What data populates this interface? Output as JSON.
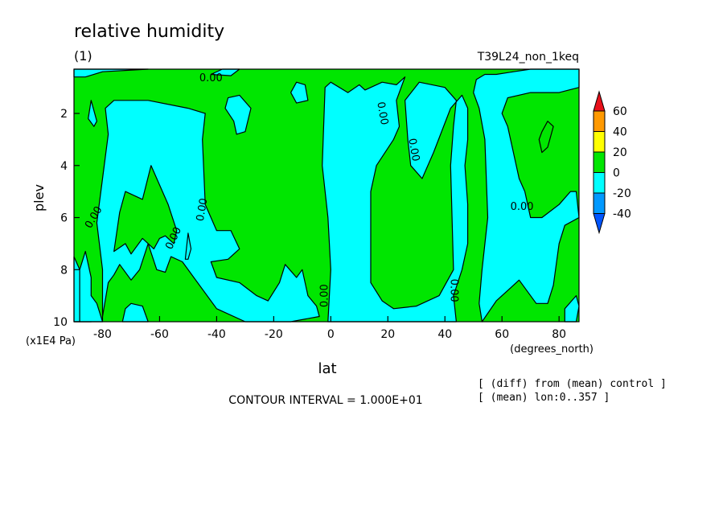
{
  "chart_data": {
    "type": "contour",
    "title": "relative humidity",
    "subtitle_left": "(1)",
    "subtitle_right": "T39L24_non_1keq",
    "xlabel": "lat",
    "xunits": "(degrees_north)",
    "ylabel": "plev",
    "yunits": "(x1E4 Pa)",
    "xlim": [
      -90,
      87
    ],
    "ylim": [
      10,
      0.3
    ],
    "x_ticks": [
      -80,
      -60,
      -40,
      -20,
      0,
      20,
      40,
      60,
      80
    ],
    "x_tick_labels": [
      "-80",
      "-60",
      "-40",
      "-20",
      "0",
      "20",
      "40",
      "60",
      "80"
    ],
    "y_ticks": [
      2,
      4,
      6,
      8,
      10
    ],
    "y_tick_labels": [
      "2",
      "4",
      "6",
      "8",
      "10"
    ],
    "contour_label": "0.00",
    "colorbar": {
      "levels": [
        -40,
        -20,
        0,
        20,
        40,
        60
      ],
      "labels": [
        "60",
        "40",
        "20",
        "0",
        "-20",
        "-40"
      ],
      "colors": [
        "#e8101a",
        "#ff9900",
        "#ffff00",
        "#00e600",
        "#00ffff",
        "#0099ff",
        "#0055ff"
      ]
    },
    "footer": {
      "contour_interval": "CONTOUR INTERVAL = 1.000E+01",
      "note1": "[ (diff) from (mean) control ]",
      "note2": "[ (mean) lon:0..357 ]"
    },
    "regions": [
      {
        "value": "negative",
        "color": "#00ffff",
        "points": [
          [
            -90,
            10
          ],
          [
            -90,
            7.5
          ],
          [
            -88,
            8
          ],
          [
            -84,
            10
          ]
        ]
      },
      {
        "value": "negative",
        "color": "#00ffff",
        "points": [
          [
            -88,
            10
          ],
          [
            -88,
            8
          ],
          [
            -86,
            7.3
          ],
          [
            -84,
            8.3
          ],
          [
            -84,
            9
          ],
          [
            -82,
            9.3
          ],
          [
            -80,
            10
          ]
        ]
      },
      {
        "value": "negative",
        "color": "#00ffff",
        "points": [
          [
            -73,
            10
          ],
          [
            -72,
            9.5
          ],
          [
            -70,
            9.3
          ],
          [
            -66,
            9.4
          ],
          [
            -64,
            10
          ]
        ]
      },
      {
        "value": "negative",
        "color": "#00ffff",
        "points": [
          [
            -80,
            9.8
          ],
          [
            -80,
            8
          ],
          [
            -82,
            6.2
          ],
          [
            -80,
            4.5
          ],
          [
            -78,
            2.8
          ],
          [
            -79,
            1.8
          ],
          [
            -76,
            1.5
          ],
          [
            -64,
            1.5
          ],
          [
            -50,
            1.8
          ],
          [
            -44,
            2
          ],
          [
            -45,
            3
          ],
          [
            -44,
            5.5
          ],
          [
            -40,
            6.5
          ],
          [
            -35,
            6.5
          ],
          [
            -32,
            7.2
          ],
          [
            -36,
            7.6
          ],
          [
            -42,
            7.7
          ],
          [
            -40,
            8.3
          ],
          [
            -32,
            8.5
          ],
          [
            -26,
            9
          ],
          [
            -22,
            9.2
          ],
          [
            -18,
            8.5
          ],
          [
            -16,
            7.8
          ],
          [
            -12,
            8.3
          ],
          [
            -10,
            8
          ],
          [
            -8,
            9
          ],
          [
            -5,
            9.4
          ],
          [
            -4,
            9.8
          ],
          [
            -14,
            10
          ],
          [
            -30,
            10
          ],
          [
            -40,
            9.5
          ],
          [
            -48,
            8.3
          ],
          [
            -52,
            7.7
          ],
          [
            -56,
            7.5
          ],
          [
            -58,
            8.1
          ],
          [
            -61,
            8
          ],
          [
            -64,
            7
          ],
          [
            -67,
            8
          ],
          [
            -70,
            8.4
          ],
          [
            -74,
            7.8
          ],
          [
            -76,
            8.2
          ],
          [
            -78,
            8.5
          ]
        ]
      },
      {
        "value": "positive",
        "color": "#00e600",
        "points": [
          [
            -76,
            7.3
          ],
          [
            -74,
            5.8
          ],
          [
            -72,
            5
          ],
          [
            -66,
            5.3
          ],
          [
            -63,
            4
          ],
          [
            -57,
            5.5
          ],
          [
            -54,
            6.5
          ],
          [
            -55,
            7
          ],
          [
            -58,
            6.7
          ],
          [
            -60,
            6.8
          ],
          [
            -62,
            7.2
          ],
          [
            -66,
            6.8
          ],
          [
            -70,
            7.4
          ],
          [
            -72,
            7
          ]
        ]
      },
      {
        "value": "negative",
        "color": "#00ffff",
        "points": [
          [
            -51,
            7.6
          ],
          [
            -50,
            6.6
          ],
          [
            -49,
            7.2
          ],
          [
            -50,
            7.6
          ]
        ]
      },
      {
        "value": "negative",
        "color": "#00ffff",
        "points": [
          [
            -34,
            2.3
          ],
          [
            -37,
            1.8
          ],
          [
            -36,
            1.4
          ],
          [
            -32,
            1.3
          ],
          [
            -28,
            1.8
          ],
          [
            -30,
            2.7
          ],
          [
            -33,
            2.8
          ]
        ]
      },
      {
        "value": "negative",
        "color": "#00ffff",
        "points": [
          [
            -14,
            1.2
          ],
          [
            -12,
            0.8
          ],
          [
            -9,
            0.9
          ],
          [
            -8,
            1.5
          ],
          [
            -12,
            1.6
          ]
        ]
      },
      {
        "value": "negative",
        "color": "#00ffff",
        "points": [
          [
            -85,
            2.2
          ],
          [
            -84,
            1.5
          ],
          [
            -82,
            2.3
          ],
          [
            -83,
            2.5
          ]
        ]
      },
      {
        "value": "negative",
        "color": "#00ffff",
        "points": [
          [
            -90,
            0.3
          ],
          [
            -90,
            0.6
          ],
          [
            -86,
            0.6
          ],
          [
            -80,
            0.4
          ],
          [
            -64,
            0.3
          ]
        ]
      },
      {
        "value": "negative",
        "color": "#00ffff",
        "points": [
          [
            -42,
            0.5
          ],
          [
            -38,
            0.3
          ],
          [
            -32,
            0.3
          ],
          [
            -35,
            0.55
          ]
        ]
      },
      {
        "value": "negative",
        "color": "#00ffff",
        "points": [
          [
            -1,
            10
          ],
          [
            0,
            8
          ],
          [
            -1,
            6
          ],
          [
            -3,
            4
          ],
          [
            -2,
            1
          ],
          [
            0,
            0.8
          ],
          [
            6,
            1.2
          ],
          [
            10,
            0.9
          ],
          [
            12,
            1.1
          ],
          [
            18,
            0.8
          ],
          [
            23,
            0.9
          ],
          [
            26,
            0.6
          ],
          [
            23,
            1.5
          ],
          [
            24,
            2.5
          ],
          [
            22,
            3
          ],
          [
            16,
            4
          ],
          [
            14,
            5
          ],
          [
            14,
            6
          ],
          [
            14,
            7.8
          ],
          [
            14,
            8.5
          ],
          [
            18,
            9.2
          ],
          [
            22,
            9.5
          ],
          [
            30,
            9.4
          ],
          [
            38,
            9
          ],
          [
            43,
            8
          ],
          [
            42,
            4
          ],
          [
            43,
            2.5
          ],
          [
            44,
            1.5
          ],
          [
            40,
            1
          ],
          [
            31,
            0.8
          ],
          [
            26,
            1.5
          ],
          [
            27,
            3
          ],
          [
            28,
            4
          ],
          [
            32,
            4.5
          ],
          [
            36,
            3.5
          ],
          [
            42,
            1.8
          ],
          [
            46,
            1.3
          ],
          [
            48,
            1.8
          ],
          [
            48,
            3
          ],
          [
            47,
            4
          ],
          [
            48,
            5.5
          ],
          [
            48,
            7
          ],
          [
            46,
            8
          ],
          [
            43,
            9
          ],
          [
            44,
            10
          ]
        ]
      },
      {
        "value": "negative",
        "color": "#00ffff",
        "points": [
          [
            53,
            10
          ],
          [
            52,
            9.3
          ],
          [
            53,
            8
          ],
          [
            55,
            6
          ],
          [
            54,
            3
          ],
          [
            52,
            1.8
          ],
          [
            50,
            1.2
          ],
          [
            51,
            0.7
          ],
          [
            54,
            0.5
          ],
          [
            58,
            0.5
          ],
          [
            64,
            0.4
          ],
          [
            70,
            0.3
          ],
          [
            87,
            0.3
          ],
          [
            87,
            1
          ],
          [
            80,
            1.2
          ],
          [
            70,
            1.2
          ],
          [
            62,
            1.4
          ],
          [
            60,
            2
          ],
          [
            62,
            2.5
          ],
          [
            64,
            3.5
          ],
          [
            66,
            4.5
          ],
          [
            68,
            5
          ],
          [
            70,
            6
          ],
          [
            74,
            6
          ],
          [
            80,
            5.5
          ],
          [
            84,
            5
          ],
          [
            86,
            5
          ],
          [
            87,
            6
          ],
          [
            82,
            6.3
          ],
          [
            80,
            7
          ],
          [
            78,
            8.6
          ],
          [
            76,
            9.3
          ],
          [
            72,
            9.3
          ],
          [
            66,
            8.4
          ],
          [
            62,
            8.8
          ],
          [
            58,
            9.2
          ]
        ]
      },
      {
        "value": "positive",
        "color": "#00e600",
        "points": [
          [
            74,
            2.7
          ],
          [
            76,
            2.3
          ],
          [
            78,
            2.5
          ],
          [
            76,
            3.3
          ],
          [
            74,
            3.5
          ],
          [
            73,
            3
          ]
        ]
      },
      {
        "value": "negative",
        "color": "#00ffff",
        "points": [
          [
            82,
            9.5
          ],
          [
            86,
            9
          ],
          [
            87,
            9.4
          ],
          [
            86,
            10
          ],
          [
            82,
            10
          ]
        ]
      }
    ]
  }
}
